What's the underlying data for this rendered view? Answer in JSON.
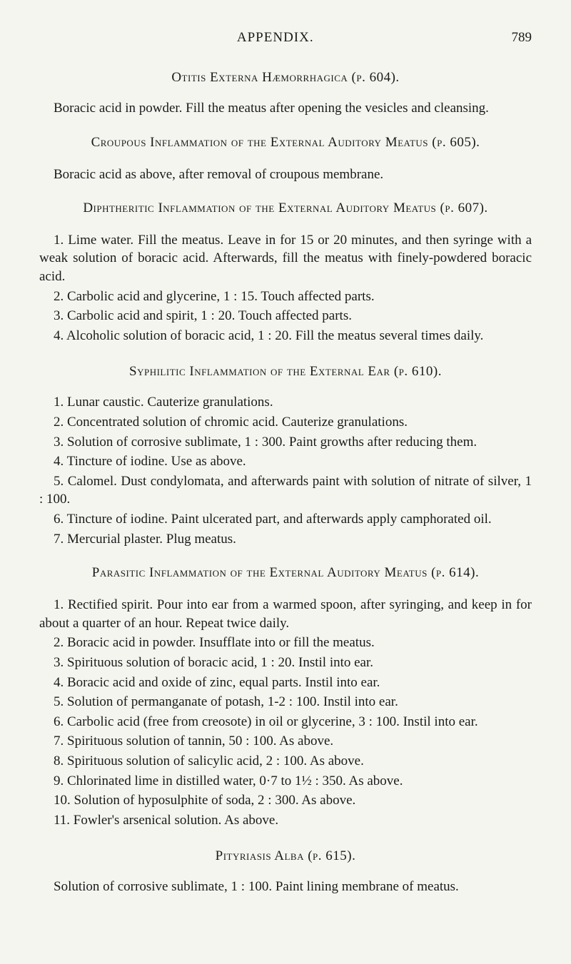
{
  "header": {
    "title": "APPENDIX.",
    "page": "789"
  },
  "section1": {
    "title": "Otitis Externa Hæmorrhagica (p. 604).",
    "para": "Boracic acid in powder. Fill the meatus after opening the vesicles and cleansing."
  },
  "section2": {
    "title": "Croupous Inflammation of the External Auditory Meatus (p. 605).",
    "para": "Boracic acid as above, after removal of croupous membrane."
  },
  "section3": {
    "title": "Diphtheritic Inflammation of the External Auditory Meatus (p. 607).",
    "items": [
      "1. Lime water. Fill the meatus. Leave in for 15 or 20 minutes, and then syringe with a weak solution of boracic acid. Afterwards, fill the meatus with finely-powdered boracic acid.",
      "2. Carbolic acid and glycerine, 1 : 15. Touch affected parts.",
      "3. Carbolic acid and spirit, 1 : 20. Touch affected parts.",
      "4. Alcoholic solution of boracic acid, 1 : 20. Fill the meatus several times daily."
    ]
  },
  "section4": {
    "title": "Syphilitic Inflammation of the External Ear (p. 610).",
    "items": [
      "1. Lunar caustic. Cauterize granulations.",
      "2. Concentrated solution of chromic acid. Cauterize granulations.",
      "3. Solution of corrosive sublimate, 1 : 300. Paint growths after reducing them.",
      "4. Tincture of iodine. Use as above.",
      "5. Calomel. Dust condylomata, and afterwards paint with solution of nitrate of silver, 1 : 100.",
      "6. Tincture of iodine. Paint ulcerated part, and afterwards apply camphorated oil.",
      "7. Mercurial plaster. Plug meatus."
    ]
  },
  "section5": {
    "title": "Parasitic Inflammation of the External Auditory Meatus (p. 614).",
    "intro": "1. Rectified spirit. Pour into ear from a warmed spoon, after syringing, and keep in for about a quarter of an hour. Repeat twice daily.",
    "items": [
      "2. Boracic acid in powder. Insufflate into or fill the meatus.",
      "3. Spirituous solution of boracic acid, 1 : 20. Instil into ear.",
      "4. Boracic acid and oxide of zinc, equal parts. Instil into ear.",
      "5. Solution of permanganate of potash, 1-2 : 100. Instil into ear.",
      "6. Carbolic acid (free from creosote) in oil or glycerine, 3 : 100. Instil into ear.",
      "7. Spirituous solution of tannin, 50 : 100. As above.",
      "8. Spirituous solution of salicylic acid, 2 : 100. As above.",
      "9. Chlorinated lime in distilled water, 0·7 to 1½ : 350. As above.",
      "10. Solution of hyposulphite of soda, 2 : 300. As above.",
      "11. Fowler's arsenical solution. As above."
    ]
  },
  "section6": {
    "title": "Pityriasis Alba (p. 615).",
    "para": "Solution of corrosive sublimate, 1 : 100. Paint lining membrane of meatus."
  }
}
